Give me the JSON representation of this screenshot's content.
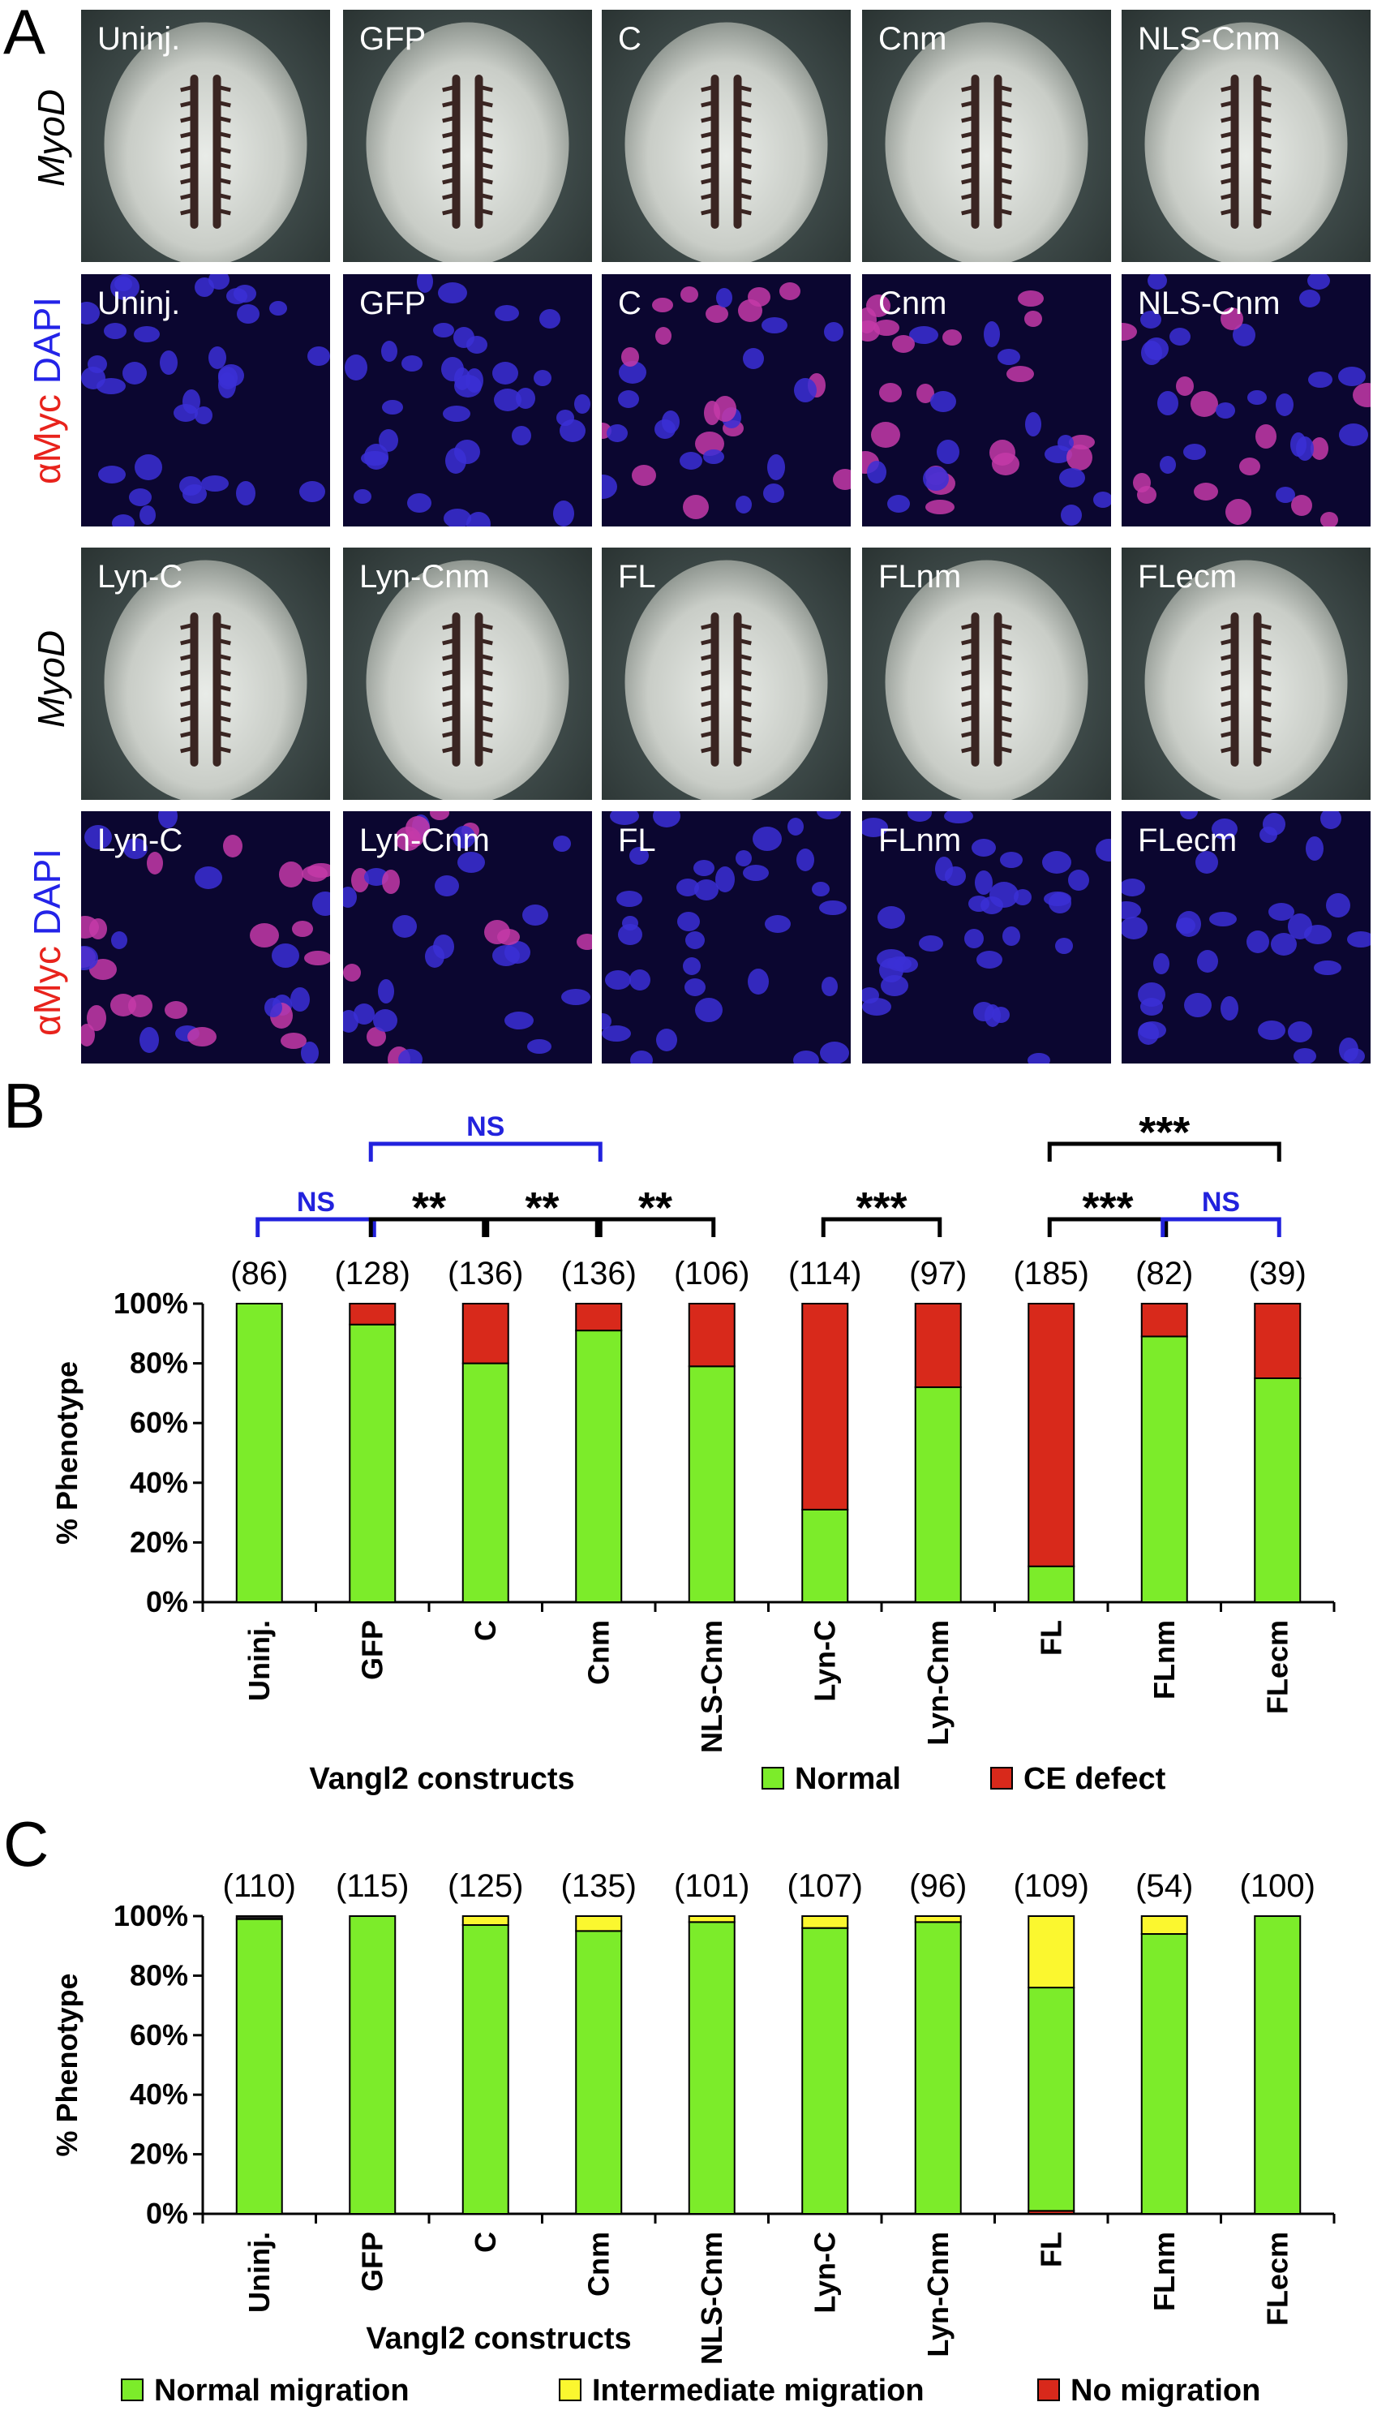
{
  "panel_labels": {
    "a": "A",
    "b": "B",
    "c": "C"
  },
  "panel_a": {
    "row_labels": {
      "myod": "MyoD",
      "amyc": "αMyc",
      "dapi": "DAPI"
    },
    "rows": [
      {
        "type": "embryo",
        "tiles": [
          "Uninj.",
          "GFP",
          "C",
          "Cnm",
          "NLS-Cnm"
        ]
      },
      {
        "type": "cells",
        "tiles": [
          "Uninj.",
          "GFP",
          "C",
          "Cnm",
          "NLS-Cnm"
        ]
      },
      {
        "type": "embryo",
        "tiles": [
          "Lyn-C",
          "Lyn-Cnm",
          "FL",
          "FLnm",
          "FLecm"
        ]
      },
      {
        "type": "cells",
        "tiles": [
          "Lyn-C",
          "Lyn-Cnm",
          "FL",
          "FLnm",
          "FLecm"
        ]
      }
    ]
  },
  "chart_data": [
    {
      "type": "bar",
      "stacked": true,
      "categories": [
        "Uninj.",
        "GFP",
        "C",
        "Cnm",
        "NLS-Cnm",
        "Lyn-C",
        "Lyn-Cnm",
        "FL",
        "FLnm",
        "FLecm"
      ],
      "counts": [
        "(86)",
        "(128)",
        "(136)",
        "(136)",
        "(106)",
        "(114)",
        "(97)",
        "(185)",
        "(82)",
        "(39)"
      ],
      "series": [
        {
          "name": "Normal",
          "color": "#7cec2a",
          "values": [
            100,
            93,
            80,
            91,
            79,
            31,
            72,
            12,
            89,
            75
          ]
        },
        {
          "name": "CE defect",
          "color": "#d8291b",
          "values": [
            0,
            7,
            20,
            9,
            21,
            69,
            28,
            88,
            11,
            25
          ]
        }
      ],
      "xlabel": "Vangl2 constructs",
      "ylabel": "% Phenotype",
      "ylim": [
        0,
        100
      ],
      "yticks": [
        "0%",
        "20%",
        "40%",
        "60%",
        "80%",
        "100%"
      ],
      "significance": [
        {
          "from": 0,
          "to": 1,
          "label": "NS",
          "color": "#2222dd",
          "level": 0
        },
        {
          "from": 1,
          "to": 2,
          "label": "**",
          "color": "#000000",
          "level": 0
        },
        {
          "from": 2,
          "to": 3,
          "label": "**",
          "color": "#000000",
          "level": 0
        },
        {
          "from": 3,
          "to": 4,
          "label": "**",
          "color": "#000000",
          "level": 0
        },
        {
          "from": 5,
          "to": 6,
          "label": "***",
          "color": "#000000",
          "level": 0
        },
        {
          "from": 7,
          "to": 8,
          "label": "***",
          "color": "#000000",
          "level": 0
        },
        {
          "from": 8,
          "to": 9,
          "label": "NS",
          "color": "#2222dd",
          "level": 0
        },
        {
          "from": 1,
          "to": 3,
          "label": "NS",
          "color": "#2222dd",
          "level": 1
        },
        {
          "from": 7,
          "to": 9,
          "label": "***",
          "color": "#000000",
          "level": 1
        }
      ],
      "legend_position": "bottom"
    },
    {
      "type": "bar",
      "stacked": true,
      "categories": [
        "Uninj.",
        "GFP",
        "C",
        "Cnm",
        "NLS-Cnm",
        "Lyn-C",
        "Lyn-Cnm",
        "FL",
        "FLnm",
        "FLecm"
      ],
      "counts": [
        "(110)",
        "(115)",
        "(125)",
        "(135)",
        "(101)",
        "(107)",
        "(96)",
        "(109)",
        "(54)",
        "(100)"
      ],
      "series": [
        {
          "name": "No migration",
          "color": "#d8291b",
          "values": [
            0,
            0,
            0,
            0,
            0,
            0,
            0,
            1,
            0,
            0
          ]
        },
        {
          "name": "Normal migration",
          "color": "#7cec2a",
          "values": [
            99,
            100,
            97,
            95,
            98,
            96,
            98,
            75,
            94,
            100
          ]
        },
        {
          "name": "Intermediate migration",
          "color": "#fbf72f",
          "values": [
            0,
            0,
            3,
            5,
            2,
            4,
            2,
            24,
            6,
            0
          ]
        },
        {
          "name": "",
          "color": "#222222",
          "values": [
            1,
            0,
            0,
            0,
            0,
            0,
            0,
            0,
            0,
            0
          ]
        }
      ],
      "legend_order": [
        1,
        2,
        0
      ],
      "xlabel": "Vangl2 constructs",
      "ylabel": "% Phenotype",
      "ylim": [
        0,
        100
      ],
      "yticks": [
        "0%",
        "20%",
        "40%",
        "60%",
        "80%",
        "100%"
      ],
      "legend_position": "bottom"
    }
  ]
}
